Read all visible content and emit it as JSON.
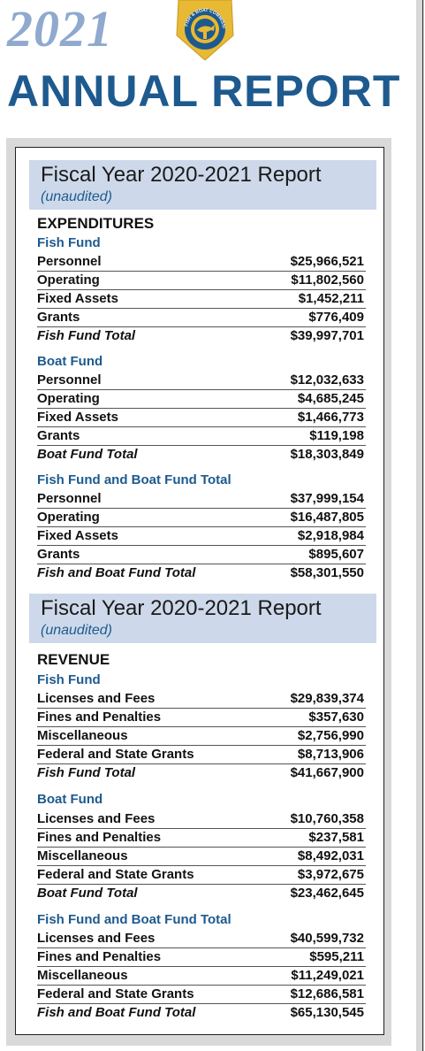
{
  "header": {
    "year": "2021",
    "title": "ANNUAL REPORT",
    "badge_text": "FISH & BOAT COMMISSION"
  },
  "report1": {
    "title": "Fiscal Year 2020-2021 Report",
    "subtitle": "(unaudited)",
    "heading": "EXPENDITURES",
    "groups": [
      {
        "name": "Fish Fund",
        "rows": [
          {
            "label": "Personnel",
            "value": "$25,966,521"
          },
          {
            "label": "Operating",
            "value": "$11,802,560"
          },
          {
            "label": "Fixed Assets",
            "value": "$1,452,211"
          },
          {
            "label": "Grants",
            "value": "$776,409"
          },
          {
            "label": "Fish Fund Total",
            "value": "$39,997,701"
          }
        ]
      },
      {
        "name": "Boat Fund",
        "rows": [
          {
            "label": "Personnel",
            "value": "$12,032,633"
          },
          {
            "label": "Operating",
            "value": "$4,685,245"
          },
          {
            "label": "Fixed Assets",
            "value": "$1,466,773"
          },
          {
            "label": "Grants",
            "value": "$119,198"
          },
          {
            "label": "Boat Fund Total",
            "value": "$18,303,849"
          }
        ]
      },
      {
        "name": "Fish Fund and Boat Fund Total",
        "rows": [
          {
            "label": "Personnel",
            "value": "$37,999,154"
          },
          {
            "label": "Operating",
            "value": "$16,487,805"
          },
          {
            "label": "Fixed Assets",
            "value": "$2,918,984"
          },
          {
            "label": "Grants",
            "value": "$895,607"
          },
          {
            "label": "Fish and Boat Fund Total",
            "value": "$58,301,550"
          }
        ]
      }
    ]
  },
  "report2": {
    "title": "Fiscal Year 2020-2021 Report",
    "subtitle": "(unaudited)",
    "heading": "REVENUE",
    "groups": [
      {
        "name": "Fish Fund",
        "rows": [
          {
            "label": "Licenses and Fees",
            "value": "$29,839,374"
          },
          {
            "label": "Fines and Penalties",
            "value": "$357,630"
          },
          {
            "label": "Miscellaneous",
            "value": "$2,756,990"
          },
          {
            "label": "Federal and State Grants",
            "value": "$8,713,906"
          },
          {
            "label": "Fish Fund Total",
            "value": "$41,667,900"
          }
        ]
      },
      {
        "name": "Boat Fund",
        "rows": [
          {
            "label": "Licenses and Fees",
            "value": "$10,760,358"
          },
          {
            "label": "Fines and Penalties",
            "value": "$237,581"
          },
          {
            "label": "Miscellaneous",
            "value": "$8,492,031"
          },
          {
            "label": "Federal and State Grants",
            "value": "$3,972,675"
          },
          {
            "label": "Boat Fund Total",
            "value": "$23,462,645"
          }
        ]
      },
      {
        "name": "Fish Fund and Boat Fund Total",
        "rows": [
          {
            "label": "Licenses and Fees",
            "value": "$40,599,732"
          },
          {
            "label": "Fines and Penalties",
            "value": "$595,211"
          },
          {
            "label": "Miscellaneous",
            "value": "$11,249,021"
          },
          {
            "label": "Federal and State Grants",
            "value": "$12,686,581"
          },
          {
            "label": "Fish and Boat Fund Total",
            "value": "$65,130,545"
          }
        ]
      }
    ]
  }
}
